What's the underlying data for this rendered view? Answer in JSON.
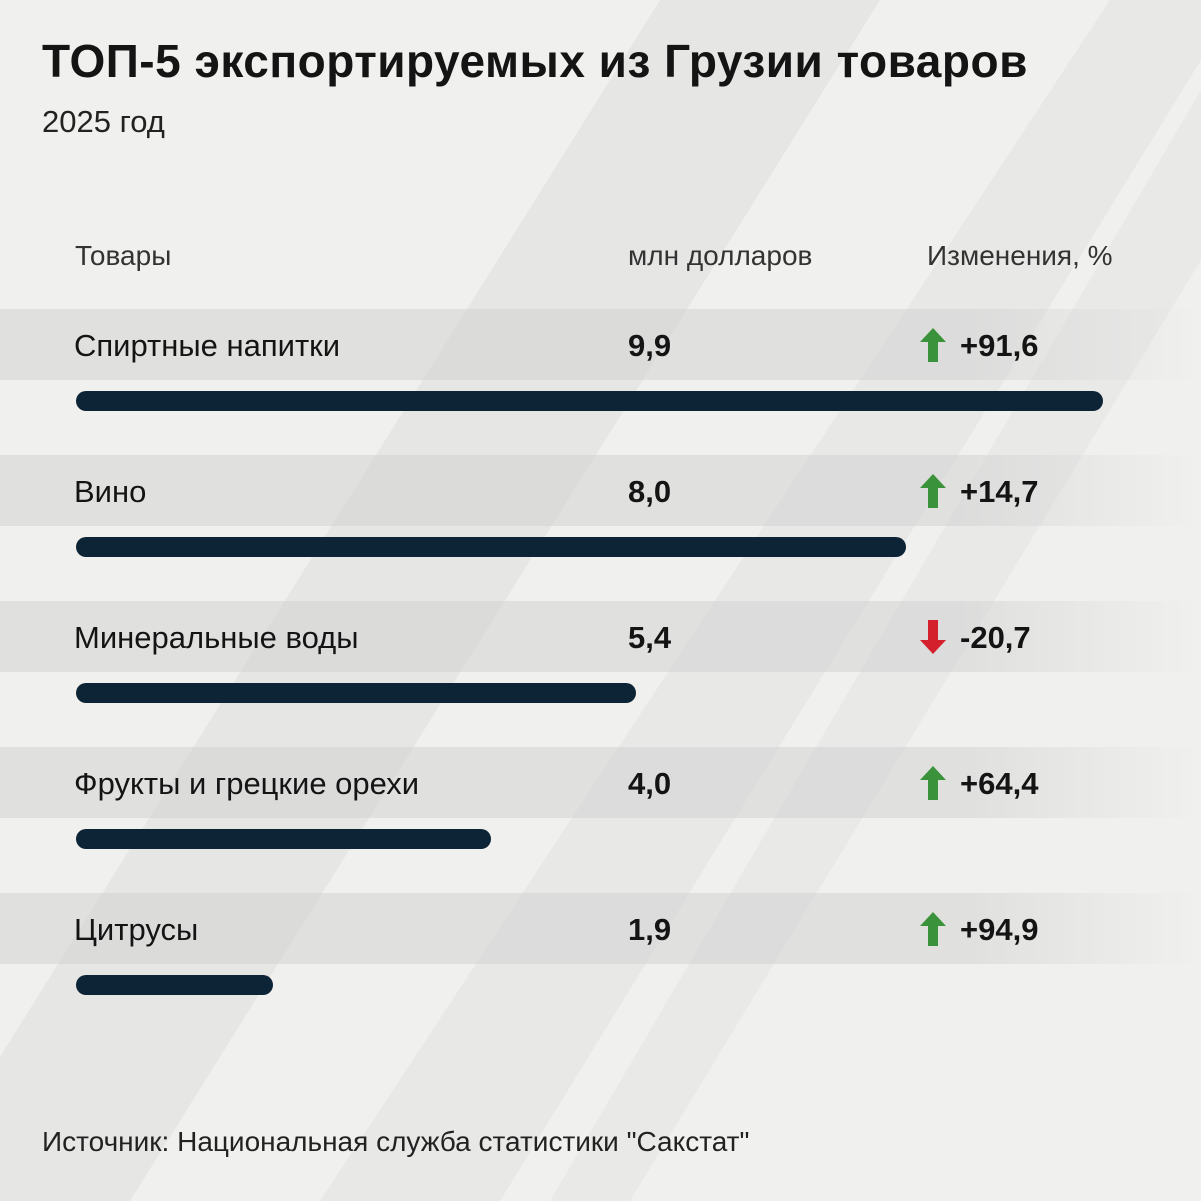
{
  "title": "ТОП-5 экспортируемых из Грузии товаров",
  "subtitle": "2025 год",
  "columns": {
    "goods": "Товары",
    "value": "млн долларов",
    "change": "Изменения, %"
  },
  "colors": {
    "bar": "#0d2436",
    "up": "#3a923a",
    "down": "#d4202c"
  },
  "chart_data": {
    "type": "bar",
    "orientation": "horizontal",
    "categories": [
      "Спиртные напитки",
      "Вино",
      "Минеральные воды",
      "Фрукты и грецкие орехи",
      "Цитрусы"
    ],
    "values": [
      9.9,
      8.0,
      5.4,
      4.0,
      1.9
    ],
    "value_labels": [
      "9,9",
      "8,0",
      "5,4",
      "4,0",
      "1,9"
    ],
    "changes": [
      91.6,
      14.7,
      -20.7,
      64.4,
      94.9
    ],
    "change_labels": [
      "+91,6",
      "+14,7",
      "-20,7",
      "+64,4",
      "+94,9"
    ],
    "change_icons": [
      "arrow-up",
      "arrow-up",
      "arrow-down",
      "arrow-up",
      "arrow-up"
    ],
    "ylabel": "млн долларов"
  },
  "source": "Источник: Национальная служба статистики \"Сакстат\""
}
